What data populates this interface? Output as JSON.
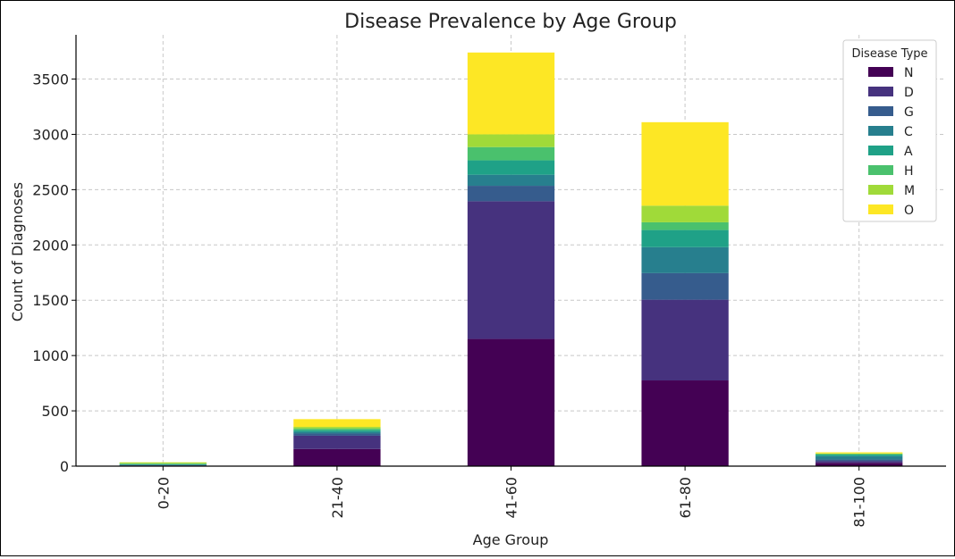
{
  "chart_data": {
    "type": "bar",
    "stacked": true,
    "title": "Disease Prevalence by Age Group",
    "xlabel": "Age Group",
    "ylabel": "Count of Diagnoses",
    "categories": [
      "0-20",
      "21-40",
      "41-60",
      "61-80",
      "81-100"
    ],
    "ylim": [
      0,
      3900
    ],
    "yticks": [
      "0",
      "500",
      "1000",
      "1500",
      "2000",
      "2500",
      "3000",
      "3500"
    ],
    "grid": true,
    "legend": {
      "title": "Disease Type",
      "position": "top-right"
    },
    "series": [
      {
        "name": "N",
        "color": "#440154",
        "values": [
          2,
          155,
          1150,
          775,
          30
        ]
      },
      {
        "name": "D",
        "color": "#46327e",
        "values": [
          3,
          120,
          1245,
          730,
          15
        ]
      },
      {
        "name": "G",
        "color": "#365c8d",
        "values": [
          3,
          20,
          140,
          240,
          15
        ]
      },
      {
        "name": "C",
        "color": "#277f8e",
        "values": [
          5,
          15,
          100,
          235,
          30
        ]
      },
      {
        "name": "A",
        "color": "#1fa187",
        "values": [
          5,
          15,
          130,
          155,
          15
        ]
      },
      {
        "name": "H",
        "color": "#4ac16d",
        "values": [
          5,
          15,
          120,
          70,
          5
        ]
      },
      {
        "name": "M",
        "color": "#a0da39",
        "values": [
          10,
          15,
          115,
          150,
          5
        ]
      },
      {
        "name": "O",
        "color": "#fde725",
        "values": [
          2,
          70,
          740,
          755,
          10
        ]
      }
    ]
  }
}
